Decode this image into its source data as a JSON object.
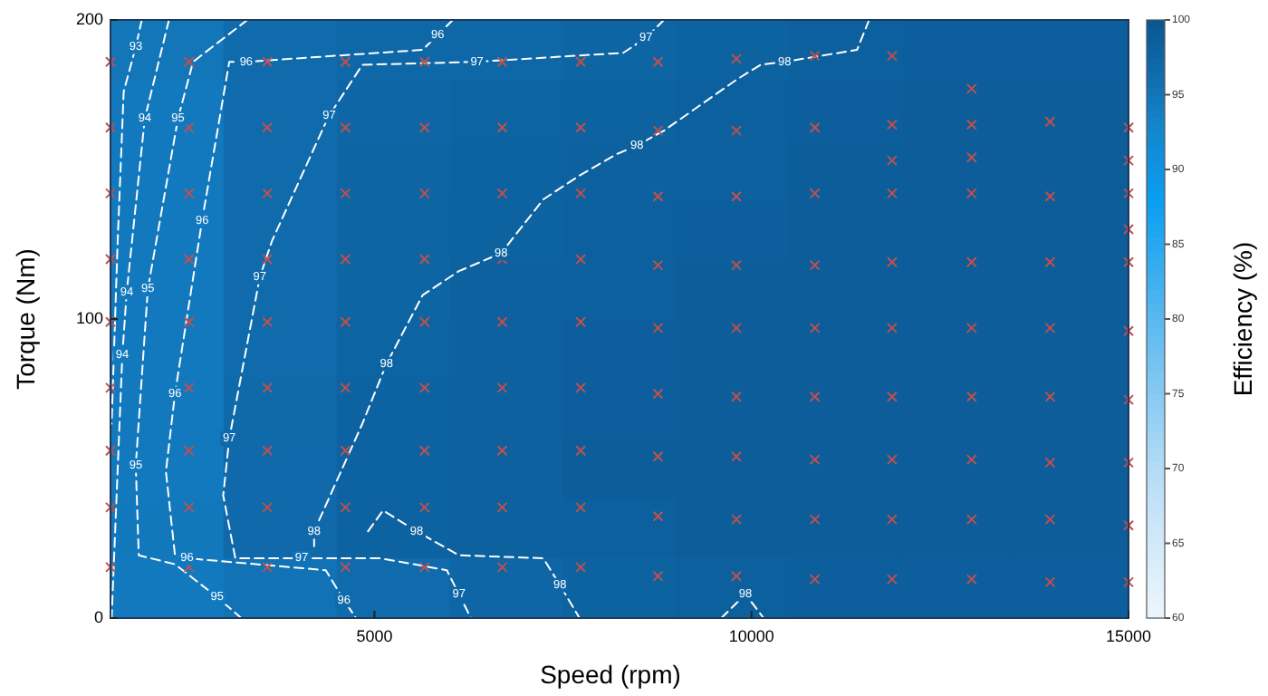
{
  "chart_data": {
    "type": "heatmap",
    "xlabel": "Speed (rpm)",
    "ylabel": "Torque (Nm)",
    "clabel": "Efficiency (%)",
    "x": [
      2250,
      3750,
      5250,
      6750,
      8250,
      9750,
      11250,
      12750,
      14250
    ],
    "y": [
      190,
      170,
      150,
      130,
      110,
      90,
      70,
      50,
      30,
      10
    ],
    "cells": [
      [
        95,
        96.5,
        97,
        97,
        97.5,
        98,
        98.3,
        98.5,
        98.5
      ],
      [
        94.5,
        96.5,
        97.3,
        97.7,
        98,
        98.3,
        98.5,
        98.8,
        98.8
      ],
      [
        94.5,
        96.5,
        97.5,
        97.8,
        98.1,
        98.4,
        98.7,
        98.9,
        98.9
      ],
      [
        94.5,
        96.5,
        97.5,
        98,
        98.3,
        98.5,
        98.8,
        98.9,
        98.9
      ],
      [
        94.5,
        96.5,
        97.5,
        98.1,
        98.4,
        98.6,
        98.8,
        98.9,
        98.9
      ],
      [
        94.5,
        96.5,
        97.7,
        98.2,
        98.5,
        98.8,
        98.9,
        98.9,
        98.9
      ],
      [
        94.5,
        96.7,
        97.8,
        98.2,
        98.5,
        98.8,
        98.9,
        98.9,
        98.9
      ],
      [
        94.5,
        96.8,
        97.9,
        98.2,
        98.6,
        98.8,
        98.9,
        98.9,
        98.9
      ],
      [
        94.7,
        96.8,
        97.9,
        98.1,
        98.4,
        98.6,
        98.8,
        98.9,
        98.8
      ],
      [
        94.5,
        95.5,
        96.5,
        97.3,
        98,
        98.3,
        98.5,
        98.5,
        98.5
      ]
    ],
    "clim": [
      60,
      100
    ],
    "cticks": [
      60,
      65,
      70,
      75,
      80,
      85,
      90,
      95,
      100
    ],
    "xlim": [
      1500,
      15000
    ],
    "xticks": [
      5000,
      10000,
      15000
    ],
    "ylim": [
      0,
      200
    ],
    "yticks": [
      0,
      100,
      200
    ],
    "line_style": "dashed",
    "series": [
      {
        "type": "line",
        "color": "#ffffff",
        "marker": "none",
        "x": [
          1915,
          1835,
          1675,
          1595,
          1515
        ],
        "values": [
          200,
          191,
          176,
          126,
          65
        ]
      },
      {
        "type": "line",
        "color": "#ffffff",
        "marker": "none",
        "x": [
          2275,
          1955,
          1715,
          1657,
          1515
        ],
        "values": [
          200,
          167,
          109,
          88,
          0
        ]
      },
      {
        "type": "line",
        "color": "#ffffff",
        "marker": "none",
        "x": [
          3315,
          2595,
          2395,
          1995,
          1835,
          1875,
          2355,
          2915,
          3235
        ],
        "values": [
          200,
          186,
          167,
          110,
          51,
          21,
          18,
          7,
          0
        ]
      },
      {
        "type": "line",
        "color": "#ffffff",
        "marker": "none",
        "x": [
          6040,
          5840,
          5640,
          3300,
          3075,
          2715,
          2355,
          2235,
          2355,
          2515,
          4355,
          4595,
          4755
        ],
        "values": [
          200,
          195,
          190,
          186,
          186,
          133,
          75,
          49,
          21,
          20,
          16,
          6,
          0
        ]
      },
      {
        "type": "line",
        "color": "#ffffff",
        "marker": "none",
        "x": [
          8840,
          8600,
          8300,
          6360,
          4840,
          4400,
          4360,
          3640,
          3480,
          3075,
          2995,
          3155,
          4035,
          5080,
          5960,
          6120,
          6280
        ],
        "values": [
          200,
          194,
          189,
          186,
          185,
          168,
          166,
          126,
          114,
          60,
          41,
          20,
          20,
          20,
          16,
          8,
          0
        ]
      },
      {
        "type": "line",
        "color": "#ffffff",
        "marker": "none",
        "x": [
          11560,
          11400,
          10440,
          10120,
          9800,
          8840,
          8480,
          8200,
          7720,
          7240,
          6680,
          6120,
          5640,
          5160,
          4840,
          4200,
          4200
        ],
        "values": [
          200,
          190,
          186,
          185,
          180,
          163,
          158,
          155,
          148,
          140,
          122,
          116,
          108,
          85,
          65,
          29,
          24
        ]
      },
      {
        "type": "line",
        "color": "#ffffff",
        "marker": "none",
        "x": [
          4915,
          5115,
          5560,
          6120,
          7240,
          7460,
          7720
        ],
        "values": [
          29,
          36,
          29,
          21,
          20,
          11,
          0
        ]
      },
      {
        "type": "line",
        "color": "#ffffff",
        "marker": "none",
        "x": [
          9600,
          9920,
          10160
        ],
        "values": [
          0,
          8,
          0
        ]
      },
      {
        "type": "scatter",
        "color": "#c0504d",
        "marker": "cross",
        "x": [
          1500,
          1500,
          1500,
          1500,
          1500,
          1500,
          1500,
          1500,
          1500,
          2540,
          2540,
          2540,
          2540,
          2540,
          2540,
          2540,
          2540,
          2540,
          3580,
          3580,
          3580,
          3580,
          3580,
          3580,
          3580,
          3580,
          3580,
          4615,
          4615,
          4615,
          4615,
          4615,
          4615,
          4615,
          4615,
          4615,
          5665,
          5665,
          5665,
          5665,
          5665,
          5665,
          5665,
          5665,
          5665,
          6695,
          6695,
          6695,
          6695,
          6695,
          6695,
          6695,
          6695,
          6695,
          7735,
          7735,
          7735,
          7735,
          7735,
          7735,
          7735,
          7735,
          7735,
          8760,
          8760,
          8760,
          8760,
          8760,
          8760,
          8760,
          8760,
          8760,
          9800,
          9800,
          9800,
          9800,
          9800,
          9800,
          9800,
          9800,
          9800,
          10840,
          10840,
          10840,
          10840,
          10840,
          10840,
          10840,
          10840,
          10840,
          11865,
          11865,
          11865,
          11865,
          11865,
          11865,
          11865,
          11865,
          11865,
          11865,
          12920,
          12920,
          12920,
          12920,
          12920,
          12920,
          12920,
          12920,
          12920,
          12920,
          13960,
          13960,
          13960,
          13960,
          13960,
          13960,
          13960,
          13960,
          15000,
          15000,
          15000,
          15000,
          15000,
          15000,
          15000,
          15000,
          15000,
          15000
        ],
        "values": [
          186,
          164,
          142,
          120,
          99,
          77,
          56,
          37,
          17,
          186,
          164,
          142,
          120,
          99,
          77,
          56,
          37,
          17,
          186,
          164,
          142,
          120,
          99,
          77,
          56,
          37,
          17,
          186,
          164,
          142,
          120,
          99,
          77,
          56,
          37,
          17,
          186,
          164,
          142,
          120,
          99,
          77,
          56,
          37,
          17,
          186,
          164,
          142,
          120,
          99,
          77,
          56,
          37,
          17,
          186,
          164,
          142,
          120,
          99,
          77,
          56,
          37,
          17,
          186,
          163,
          141,
          118,
          97,
          75,
          54,
          34,
          14,
          187,
          163,
          141,
          118,
          97,
          74,
          54,
          33,
          14,
          188,
          164,
          142,
          118,
          97,
          74,
          53,
          33,
          13,
          188,
          165,
          153,
          142,
          119,
          97,
          74,
          53,
          33,
          13,
          177,
          165,
          154,
          142,
          119,
          97,
          74,
          53,
          33,
          13,
          166,
          141,
          119,
          97,
          74,
          52,
          33,
          12,
          164,
          153,
          142,
          130,
          119,
          96,
          73,
          52,
          31,
          12
        ]
      }
    ],
    "annotations": [
      {
        "text": "93",
        "x": 1835,
        "y": 191
      },
      {
        "text": "94",
        "x": 1955,
        "y": 167
      },
      {
        "text": "94",
        "x": 1715,
        "y": 109
      },
      {
        "text": "94",
        "x": 1657,
        "y": 88
      },
      {
        "text": "95",
        "x": 2395,
        "y": 167
      },
      {
        "text": "95",
        "x": 1995,
        "y": 110
      },
      {
        "text": "95",
        "x": 1835,
        "y": 51
      },
      {
        "text": "95",
        "x": 2915,
        "y": 7
      },
      {
        "text": "96",
        "x": 3300,
        "y": 186
      },
      {
        "text": "96",
        "x": 5840,
        "y": 195
      },
      {
        "text": "96",
        "x": 2715,
        "y": 133
      },
      {
        "text": "96",
        "x": 2355,
        "y": 75
      },
      {
        "text": "96",
        "x": 2515,
        "y": 20
      },
      {
        "text": "96",
        "x": 4595,
        "y": 6
      },
      {
        "text": "97",
        "x": 6360,
        "y": 186
      },
      {
        "text": "97",
        "x": 8600,
        "y": 194
      },
      {
        "text": "97",
        "x": 4400,
        "y": 168
      },
      {
        "text": "97",
        "x": 3480,
        "y": 114
      },
      {
        "text": "97",
        "x": 3075,
        "y": 60
      },
      {
        "text": "97",
        "x": 4035,
        "y": 20
      },
      {
        "text": "97",
        "x": 6120,
        "y": 8
      },
      {
        "text": "98",
        "x": 10440,
        "y": 186
      },
      {
        "text": "98",
        "x": 8480,
        "y": 158
      },
      {
        "text": "98",
        "x": 6680,
        "y": 122
      },
      {
        "text": "98",
        "x": 5160,
        "y": 85
      },
      {
        "text": "98",
        "x": 4200,
        "y": 29
      },
      {
        "text": "98",
        "x": 5560,
        "y": 29
      },
      {
        "text": "98",
        "x": 7460,
        "y": 11
      },
      {
        "text": "98",
        "x": 9920,
        "y": 8
      }
    ]
  }
}
